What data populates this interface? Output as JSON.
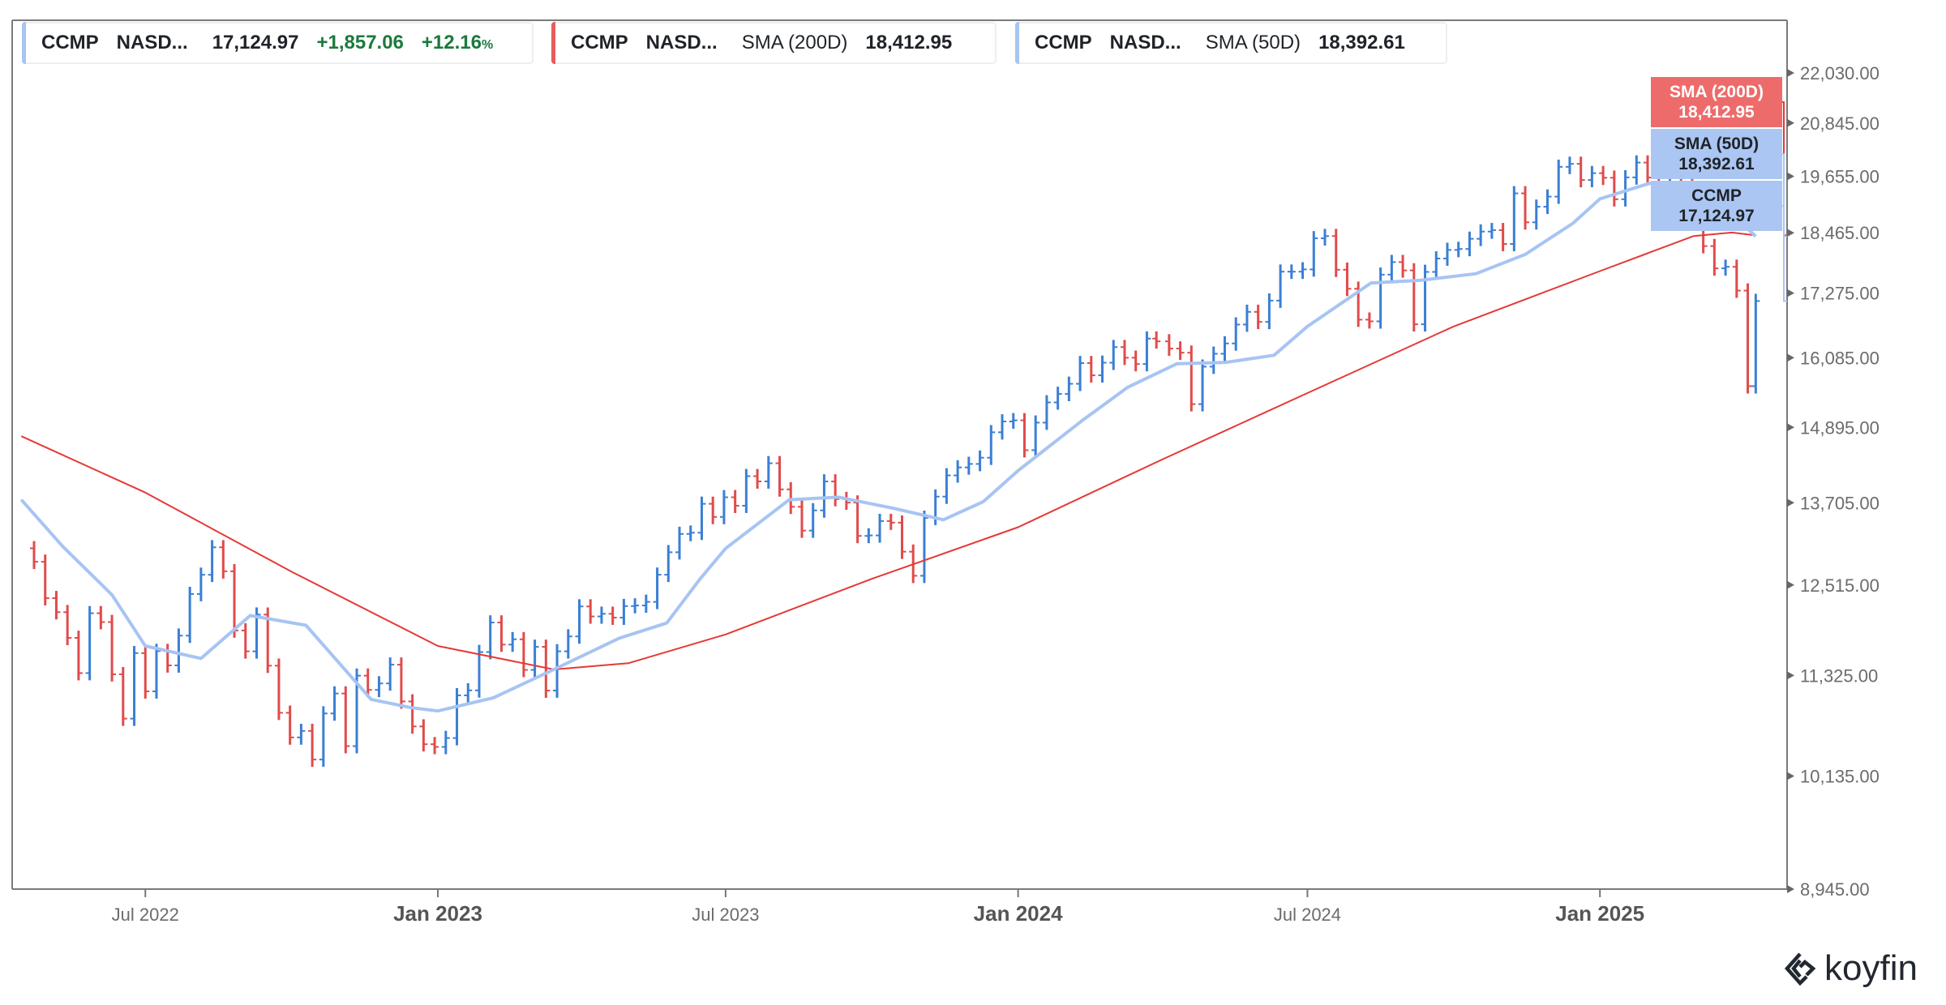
{
  "legend": [
    {
      "symbol": "CCMP",
      "name": "NASD...",
      "value": "17,124.97",
      "change": "+1,857.06",
      "change_pct": "+12.16",
      "pct_sign": "%",
      "color": "#a7c4f2"
    },
    {
      "symbol": "CCMP",
      "name": "NASD...",
      "indicator": "SMA (200D)",
      "value": "18,412.95",
      "color": "#e85c5c"
    },
    {
      "symbol": "CCMP",
      "name": "NASD...",
      "indicator": "SMA (50D)",
      "value": "18,392.61",
      "color": "#a7c4f2"
    }
  ],
  "price_tags": [
    {
      "label": "SMA (200D)",
      "value": "18,412.95",
      "bg": "#ee6b6b",
      "fg": "#ffffff"
    },
    {
      "label": "SMA (50D)",
      "value": "18,392.61",
      "bg": "#abc6f2",
      "fg": "#1f2329"
    },
    {
      "label": "CCMP",
      "value": "17,124.97",
      "bg": "#abc6f2",
      "fg": "#1f2329"
    }
  ],
  "brand": "koyfin",
  "chart_data": {
    "type": "ohlc",
    "y_scale": "log",
    "ylim": [
      8945,
      22030
    ],
    "y_ticks": [
      "22,030.00",
      "20,845.00",
      "19,655.00",
      "18,465.00",
      "17,275.00",
      "16,085.00",
      "14,895.00",
      "13,705.00",
      "12,515.00",
      "11,325.00",
      "10,135.00",
      "8,945.00"
    ],
    "x_ticks": [
      {
        "label": "Jul 2022",
        "date": "2022-07-01",
        "major": false
      },
      {
        "label": "Jan 2023",
        "date": "2023-01-01",
        "major": true
      },
      {
        "label": "Jul 2023",
        "date": "2023-07-01",
        "major": false
      },
      {
        "label": "Jan 2024",
        "date": "2024-01-01",
        "major": true
      },
      {
        "label": "Jul 2024",
        "date": "2024-07-01",
        "major": false
      },
      {
        "label": "Jan 2025",
        "date": "2025-01-01",
        "major": true
      }
    ],
    "grid": false,
    "colors": {
      "up": "#3b7fd4",
      "down": "#e04b4b",
      "sma200": "#e53935",
      "sma50": "#a7c4f2"
    },
    "series": [
      {
        "name": "CCMP",
        "close": [
          [
            "2022-04-22",
            12840
          ],
          [
            "2022-04-29",
            12335
          ],
          [
            "2022-05-06",
            12145
          ],
          [
            "2022-05-13",
            11805
          ],
          [
            "2022-05-20",
            11355
          ],
          [
            "2022-05-27",
            12131
          ],
          [
            "2022-06-03",
            12013
          ],
          [
            "2022-06-10",
            11340
          ],
          [
            "2022-06-17",
            10798
          ],
          [
            "2022-06-24",
            11608
          ],
          [
            "2022-07-01",
            11128
          ],
          [
            "2022-07-08",
            11635
          ],
          [
            "2022-07-15",
            11452
          ],
          [
            "2022-07-22",
            11834
          ],
          [
            "2022-07-29",
            12391
          ],
          [
            "2022-08-05",
            12657
          ],
          [
            "2022-08-12",
            13047
          ],
          [
            "2022-08-19",
            12706
          ],
          [
            "2022-08-26",
            11902
          ],
          [
            "2022-09-02",
            11631
          ],
          [
            "2022-09-09",
            12112
          ],
          [
            "2022-09-16",
            11448
          ],
          [
            "2022-09-23",
            10868
          ],
          [
            "2022-09-30",
            10576
          ],
          [
            "2022-10-07",
            10652
          ],
          [
            "2022-10-14",
            10321
          ],
          [
            "2022-10-21",
            10860
          ],
          [
            "2022-10-28",
            11102
          ],
          [
            "2022-11-04",
            10475
          ],
          [
            "2022-11-11",
            11323
          ],
          [
            "2022-11-18",
            11146
          ],
          [
            "2022-11-25",
            11226
          ],
          [
            "2022-12-02",
            11461
          ],
          [
            "2022-12-09",
            11005
          ],
          [
            "2022-12-16",
            10705
          ],
          [
            "2022-12-23",
            10497
          ],
          [
            "2022-12-30",
            10466
          ],
          [
            "2023-01-06",
            10569
          ],
          [
            "2023-01-13",
            11079
          ],
          [
            "2023-01-20",
            11140
          ],
          [
            "2023-01-27",
            11622
          ],
          [
            "2023-02-03",
            12007
          ],
          [
            "2023-02-10",
            11718
          ],
          [
            "2023-02-17",
            11787
          ],
          [
            "2023-02-24",
            11395
          ],
          [
            "2023-03-03",
            11689
          ],
          [
            "2023-03-10",
            11138
          ],
          [
            "2023-03-17",
            11631
          ],
          [
            "2023-03-24",
            11824
          ],
          [
            "2023-03-31",
            12222
          ],
          [
            "2023-04-07",
            12088
          ],
          [
            "2023-04-14",
            12123
          ],
          [
            "2023-04-21",
            12072
          ],
          [
            "2023-04-28",
            12227
          ],
          [
            "2023-05-05",
            12235
          ],
          [
            "2023-05-12",
            12284
          ],
          [
            "2023-05-19",
            12658
          ],
          [
            "2023-05-26",
            12976
          ],
          [
            "2023-06-02",
            13241
          ],
          [
            "2023-06-09",
            13259
          ],
          [
            "2023-06-16",
            13689
          ],
          [
            "2023-06-23",
            13492
          ],
          [
            "2023-06-30",
            13788
          ],
          [
            "2023-07-07",
            13660
          ],
          [
            "2023-07-14",
            14113
          ],
          [
            "2023-07-21",
            14032
          ],
          [
            "2023-07-28",
            14316
          ],
          [
            "2023-08-04",
            13909
          ],
          [
            "2023-08-11",
            13644
          ],
          [
            "2023-08-18",
            13290
          ],
          [
            "2023-08-25",
            13590
          ],
          [
            "2023-09-01",
            14031
          ],
          [
            "2023-09-08",
            13761
          ],
          [
            "2023-09-15",
            13708
          ],
          [
            "2023-09-22",
            13212
          ],
          [
            "2023-09-29",
            13219
          ],
          [
            "2023-10-06",
            13431
          ],
          [
            "2023-10-13",
            13407
          ],
          [
            "2023-10-20",
            12984
          ],
          [
            "2023-10-27",
            12643
          ],
          [
            "2023-11-03",
            13478
          ],
          [
            "2023-11-10",
            13798
          ],
          [
            "2023-11-17",
            14125
          ],
          [
            "2023-11-24",
            14250
          ],
          [
            "2023-12-01",
            14305
          ],
          [
            "2023-12-08",
            14404
          ],
          [
            "2023-12-15",
            14814
          ],
          [
            "2023-12-22",
            14992
          ],
          [
            "2023-12-29",
            15011
          ],
          [
            "2024-01-05",
            14524
          ],
          [
            "2024-01-12",
            14973
          ],
          [
            "2024-01-19",
            15311
          ],
          [
            "2024-01-26",
            15455
          ],
          [
            "2024-02-02",
            15629
          ],
          [
            "2024-02-09",
            15990
          ],
          [
            "2024-02-16",
            15776
          ],
          [
            "2024-02-23",
            15997
          ],
          [
            "2024-03-01",
            16275
          ],
          [
            "2024-03-08",
            16085
          ],
          [
            "2024-03-15",
            15973
          ],
          [
            "2024-03-22",
            16429
          ],
          [
            "2024-03-28",
            16379
          ],
          [
            "2024-04-05",
            16249
          ],
          [
            "2024-04-12",
            16175
          ],
          [
            "2024-04-19",
            15282
          ],
          [
            "2024-04-26",
            15928
          ],
          [
            "2024-05-03",
            16156
          ],
          [
            "2024-05-10",
            16341
          ],
          [
            "2024-05-17",
            16686
          ],
          [
            "2024-05-24",
            16921
          ],
          [
            "2024-05-31",
            16735
          ],
          [
            "2024-06-07",
            17133
          ],
          [
            "2024-06-14",
            17689
          ],
          [
            "2024-06-21",
            17689
          ],
          [
            "2024-06-28",
            17733
          ],
          [
            "2024-07-05",
            18353
          ],
          [
            "2024-07-12",
            18398
          ],
          [
            "2024-07-19",
            17727
          ],
          [
            "2024-07-26",
            17358
          ],
          [
            "2024-08-02",
            16776
          ],
          [
            "2024-08-09",
            16745
          ],
          [
            "2024-08-16",
            17631
          ],
          [
            "2024-08-23",
            17877
          ],
          [
            "2024-08-30",
            17714
          ],
          [
            "2024-09-06",
            16691
          ],
          [
            "2024-09-13",
            17684
          ],
          [
            "2024-09-20",
            17948
          ],
          [
            "2024-09-27",
            18119
          ],
          [
            "2024-10-04",
            18138
          ],
          [
            "2024-10-11",
            18343
          ],
          [
            "2024-10-18",
            18490
          ],
          [
            "2024-10-25",
            18519
          ],
          [
            "2024-11-01",
            18239
          ],
          [
            "2024-11-08",
            19287
          ],
          [
            "2024-11-15",
            18680
          ],
          [
            "2024-11-22",
            19004
          ],
          [
            "2024-11-29",
            19218
          ],
          [
            "2024-12-06",
            19860
          ],
          [
            "2024-12-13",
            19926
          ],
          [
            "2024-12-20",
            19573
          ],
          [
            "2024-12-27",
            19722
          ],
          [
            "2025-01-03",
            19622
          ],
          [
            "2025-01-10",
            19162
          ],
          [
            "2025-01-17",
            19630
          ],
          [
            "2025-01-24",
            19954
          ],
          [
            "2025-01-31",
            19627
          ],
          [
            "2025-02-07",
            19523
          ],
          [
            "2025-02-14",
            20027
          ],
          [
            "2025-02-21",
            19524
          ],
          [
            "2025-02-28",
            18847
          ],
          [
            "2025-03-07",
            18196
          ],
          [
            "2025-03-14",
            17754
          ],
          [
            "2025-03-21",
            17784
          ],
          [
            "2025-03-28",
            17323
          ],
          [
            "2025-04-04",
            15588
          ],
          [
            "2025-04-09",
            17124.97
          ]
        ]
      },
      {
        "name": "SMA (200D)",
        "values": [
          [
            "2022-04-14",
            14750
          ],
          [
            "2022-07-01",
            13860
          ],
          [
            "2022-10-01",
            12700
          ],
          [
            "2023-01-01",
            11700
          ],
          [
            "2023-03-15",
            11400
          ],
          [
            "2023-05-01",
            11480
          ],
          [
            "2023-07-01",
            11850
          ],
          [
            "2023-10-01",
            12600
          ],
          [
            "2024-01-01",
            13340
          ],
          [
            "2024-04-01",
            14380
          ],
          [
            "2024-07-01",
            15470
          ],
          [
            "2024-10-01",
            16650
          ],
          [
            "2025-01-01",
            17700
          ],
          [
            "2025-03-01",
            18400
          ],
          [
            "2025-03-25",
            18470
          ],
          [
            "2025-04-09",
            18412.95
          ]
        ]
      },
      {
        "name": "SMA (50D)",
        "values": [
          [
            "2022-04-14",
            13750
          ],
          [
            "2022-05-10",
            13060
          ],
          [
            "2022-06-10",
            12380
          ],
          [
            "2022-07-01",
            11700
          ],
          [
            "2022-08-05",
            11540
          ],
          [
            "2022-09-05",
            12100
          ],
          [
            "2022-10-10",
            11970
          ],
          [
            "2022-11-20",
            11030
          ],
          [
            "2022-12-15",
            10930
          ],
          [
            "2023-01-01",
            10890
          ],
          [
            "2023-02-05",
            11050
          ],
          [
            "2023-03-15",
            11400
          ],
          [
            "2023-04-25",
            11800
          ],
          [
            "2023-05-25",
            12000
          ],
          [
            "2023-06-15",
            12600
          ],
          [
            "2023-07-01",
            13030
          ],
          [
            "2023-08-10",
            13750
          ],
          [
            "2023-09-10",
            13790
          ],
          [
            "2023-10-15",
            13620
          ],
          [
            "2023-11-15",
            13450
          ],
          [
            "2023-12-10",
            13720
          ],
          [
            "2024-01-01",
            14200
          ],
          [
            "2024-02-10",
            15000
          ],
          [
            "2024-03-10",
            15570
          ],
          [
            "2024-04-10",
            15980
          ],
          [
            "2024-05-10",
            16000
          ],
          [
            "2024-06-10",
            16130
          ],
          [
            "2024-07-01",
            16650
          ],
          [
            "2024-08-10",
            17470
          ],
          [
            "2024-09-10",
            17520
          ],
          [
            "2024-10-15",
            17650
          ],
          [
            "2024-11-15",
            18030
          ],
          [
            "2024-12-15",
            18660
          ],
          [
            "2025-01-01",
            19170
          ],
          [
            "2025-02-01",
            19500
          ],
          [
            "2025-03-01",
            19440
          ],
          [
            "2025-03-20",
            19000
          ],
          [
            "2025-04-09",
            18392.61
          ]
        ]
      }
    ]
  }
}
